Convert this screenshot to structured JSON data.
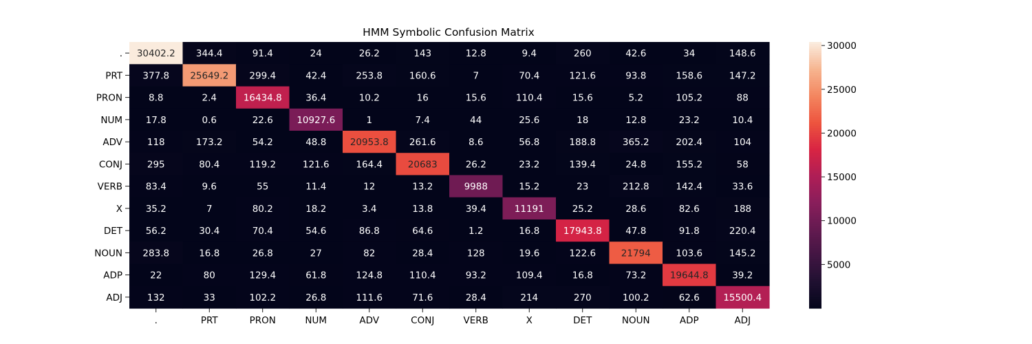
{
  "chart_data": {
    "type": "heatmap",
    "title": "HMM Symbolic Confusion Matrix",
    "xlabel": "",
    "ylabel": "",
    "row_labels": [
      ".",
      "PRT",
      "PRON",
      "NUM",
      "ADV",
      "CONJ",
      "VERB",
      "X",
      "DET",
      "NOUN",
      "ADP",
      "ADJ"
    ],
    "col_labels": [
      ".",
      "PRT",
      "PRON",
      "NUM",
      "ADV",
      "CONJ",
      "VERB",
      "X",
      "DET",
      "NOUN",
      "ADP",
      "ADJ"
    ],
    "values": [
      [
        "30402.2",
        "344.4",
        "91.4",
        "24",
        "26.2",
        "143",
        "12.8",
        "9.4",
        "260",
        "42.6",
        "34",
        "148.6"
      ],
      [
        "377.8",
        "25649.2",
        "299.4",
        "42.4",
        "253.8",
        "160.6",
        "7",
        "70.4",
        "121.6",
        "93.8",
        "158.6",
        "147.2"
      ],
      [
        "8.8",
        "2.4",
        "16434.8",
        "36.4",
        "10.2",
        "16",
        "15.6",
        "110.4",
        "15.6",
        "5.2",
        "105.2",
        "88"
      ],
      [
        "17.8",
        "0.6",
        "22.6",
        "10927.6",
        "1",
        "7.4",
        "44",
        "25.6",
        "18",
        "12.8",
        "23.2",
        "10.4"
      ],
      [
        "118",
        "173.2",
        "54.2",
        "48.8",
        "20953.8",
        "261.6",
        "8.6",
        "56.8",
        "188.8",
        "365.2",
        "202.4",
        "104"
      ],
      [
        "295",
        "80.4",
        "119.2",
        "121.6",
        "164.4",
        "20683",
        "26.2",
        "23.2",
        "139.4",
        "24.8",
        "155.2",
        "58"
      ],
      [
        "83.4",
        "9.6",
        "55",
        "11.4",
        "12",
        "13.2",
        "9988",
        "15.2",
        "23",
        "212.8",
        "142.4",
        "33.6"
      ],
      [
        "35.2",
        "7",
        "80.2",
        "18.2",
        "3.4",
        "13.8",
        "39.4",
        "11191",
        "25.2",
        "28.6",
        "82.6",
        "188"
      ],
      [
        "56.2",
        "30.4",
        "70.4",
        "54.6",
        "86.8",
        "64.6",
        "1.2",
        "16.8",
        "17943.8",
        "47.8",
        "91.8",
        "220.4"
      ],
      [
        "283.8",
        "16.8",
        "26.8",
        "27",
        "82",
        "28.4",
        "128",
        "19.6",
        "122.6",
        "21794",
        "103.6",
        "145.2"
      ],
      [
        "22",
        "80",
        "129.4",
        "61.8",
        "124.8",
        "110.4",
        "93.2",
        "109.4",
        "16.8",
        "73.2",
        "19644.8",
        "39.2"
      ],
      [
        "132",
        "33",
        "102.2",
        "26.8",
        "111.6",
        "71.6",
        "28.4",
        "214",
        "270",
        "100.2",
        "62.6",
        "15500.4"
      ]
    ],
    "vmin": 0.6,
    "vmax": 30402.2,
    "colormap": "rocket",
    "colorbar_ticks": [
      "5000",
      "10000",
      "15000",
      "20000",
      "25000",
      "30000"
    ],
    "legend_position": "right",
    "grid": false
  }
}
